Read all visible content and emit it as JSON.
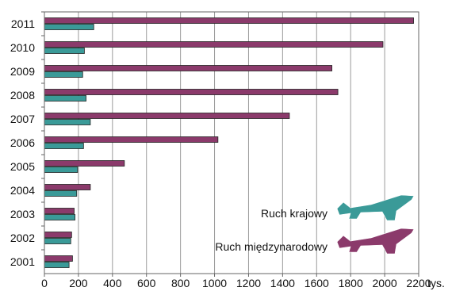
{
  "chart_data": {
    "type": "bar",
    "orientation": "horizontal",
    "categories": [
      "2011",
      "2010",
      "2009",
      "2008",
      "2007",
      "2006",
      "2005",
      "2004",
      "2003",
      "2002",
      "2001"
    ],
    "series": [
      {
        "name": "Ruch międzynarodowy",
        "color": "#8B3A6B",
        "values": [
          2170,
          1990,
          1690,
          1725,
          1440,
          1020,
          470,
          270,
          175,
          160,
          165
        ]
      },
      {
        "name": "Ruch krajowy",
        "color": "#3A9A98",
        "values": [
          290,
          235,
          225,
          245,
          270,
          230,
          195,
          190,
          180,
          155,
          145
        ]
      }
    ],
    "xlim": [
      0,
      2200
    ],
    "x_ticks": [
      "0",
      "200",
      "400",
      "600",
      "800",
      "1000",
      "1200",
      "1400",
      "1600",
      "1800",
      "2000",
      "2200"
    ],
    "x_unit": "tys.",
    "grid": "vertical",
    "legend": [
      {
        "label": "Ruch krajowy",
        "color": "#3A9A98",
        "icon": "airplane-icon"
      },
      {
        "label": "Ruch międzynarodowy",
        "color": "#8B3A6B",
        "icon": "airplane-icon"
      }
    ],
    "legend_position": "bottom-right"
  }
}
